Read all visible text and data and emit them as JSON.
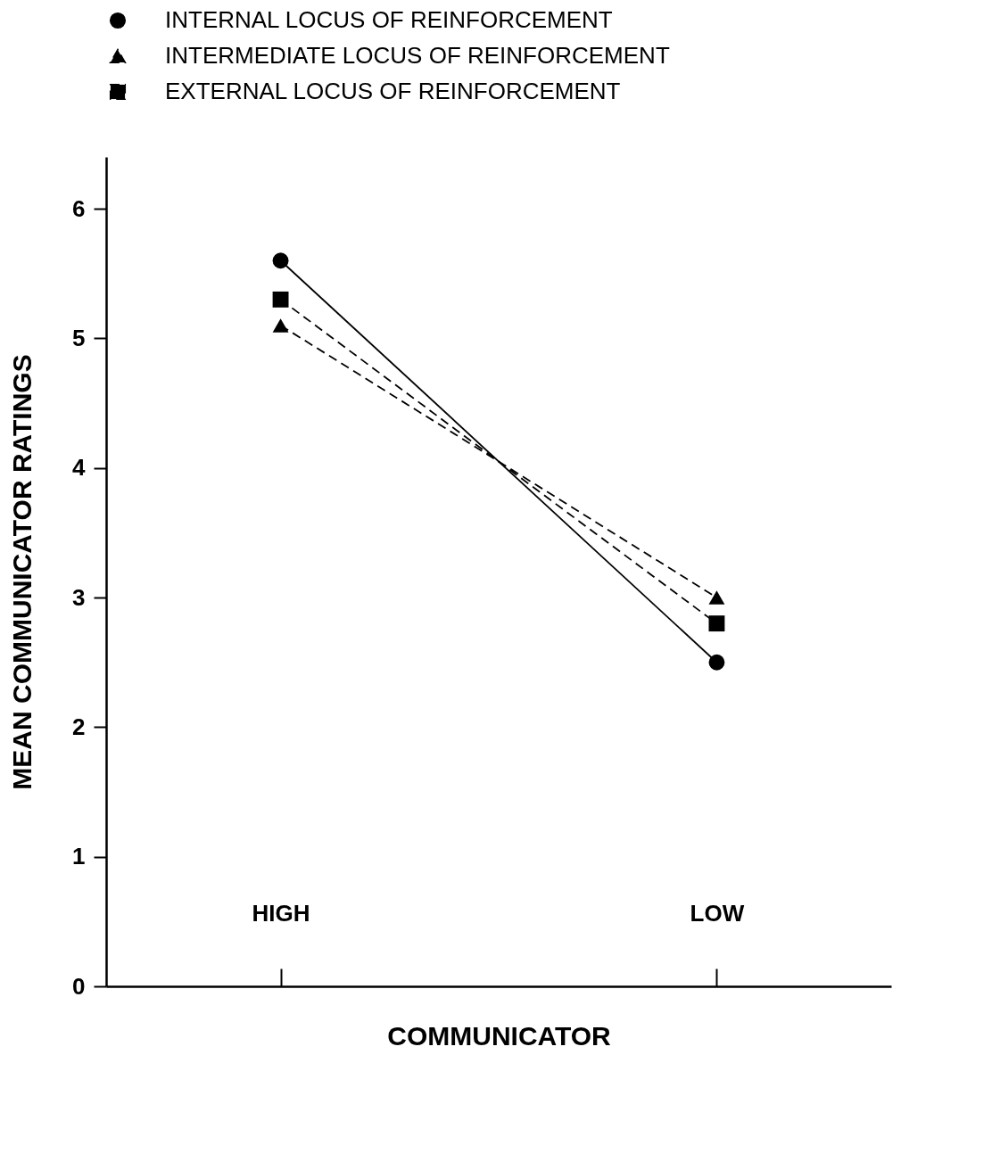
{
  "chart_data": {
    "type": "line",
    "xlabel": "COMMUNICATOR",
    "ylabel": "MEAN COMMUNICATOR RATINGS",
    "categories": [
      "HIGH",
      "LOW"
    ],
    "series": [
      {
        "name": "INTERNAL LOCUS OF REINFORCEMENT",
        "color": "#000000",
        "marker": "circle",
        "line_style": "solid",
        "values": [
          5.6,
          2.5
        ]
      },
      {
        "name": "INTERMEDIATE LOCUS OF REINFORCEMENT",
        "color": "#000000",
        "marker": "triangle",
        "line_style": "dashed",
        "values": [
          5.1,
          3.0
        ]
      },
      {
        "name": "EXTERNAL LOCUS OF REINFORCEMENT",
        "color": "#000000",
        "marker": "square",
        "line_style": "dashed",
        "values": [
          5.3,
          2.8
        ]
      }
    ],
    "ylim": [
      0,
      6.4
    ],
    "yticks": [
      0,
      1,
      2,
      3,
      4,
      5,
      6
    ],
    "grid": false,
    "legend": "top"
  }
}
